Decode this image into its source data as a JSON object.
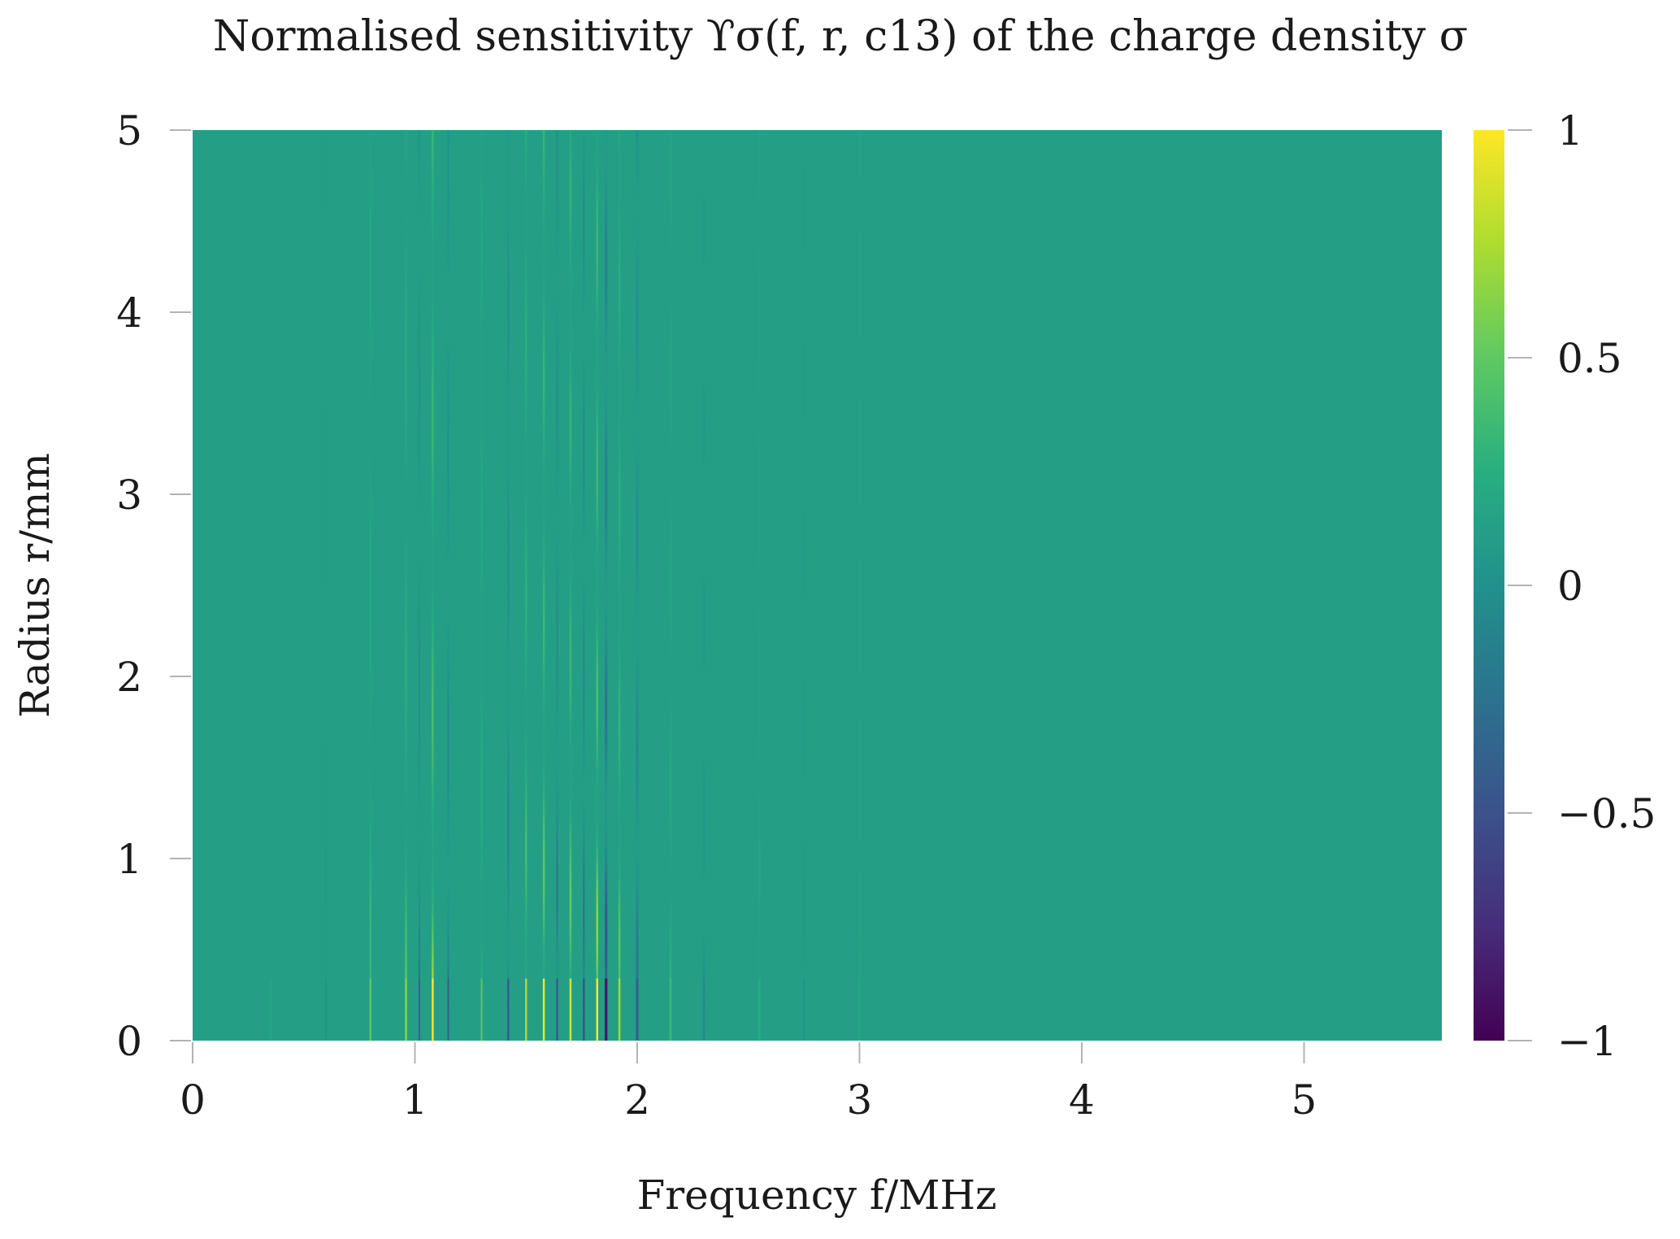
{
  "chart_data": {
    "type": "heatmap",
    "title": "Normalised sensitivity ϒσ(f, r, c13) of the charge density σ",
    "xlabel": "Frequency f/MHz",
    "ylabel": "Radius r/mm",
    "xlim": [
      0,
      5.62
    ],
    "ylim": [
      0,
      5
    ],
    "x_ticks": [
      {
        "value": 0,
        "label": "0"
      },
      {
        "value": 1,
        "label": "1"
      },
      {
        "value": 2,
        "label": "2"
      },
      {
        "value": 3,
        "label": "3"
      },
      {
        "value": 4,
        "label": "4"
      },
      {
        "value": 5,
        "label": "5"
      }
    ],
    "y_ticks": [
      {
        "value": 0,
        "label": "0"
      },
      {
        "value": 1,
        "label": "1"
      },
      {
        "value": 2,
        "label": "2"
      },
      {
        "value": 3,
        "label": "3"
      },
      {
        "value": 4,
        "label": "4"
      },
      {
        "value": 5,
        "label": "5"
      }
    ],
    "colorbar": {
      "colormap": "viridis",
      "range": [
        -1,
        1
      ],
      "ticks": [
        {
          "value": 1,
          "label": "1"
        },
        {
          "value": 0.5,
          "label": "0.5"
        },
        {
          "value": 0,
          "label": "0"
        },
        {
          "value": -0.5,
          "label": "−0.5"
        },
        {
          "value": -1,
          "label": "−1"
        }
      ]
    },
    "grid": false,
    "background_value": 0.12,
    "resonance_lines": [
      {
        "f": 0.35,
        "amp": 0.05,
        "sign": 1,
        "width": 0.006
      },
      {
        "f": 0.6,
        "amp": -0.08,
        "sign": -1,
        "width": 0.007
      },
      {
        "f": 0.8,
        "amp": 0.35,
        "sign": 1,
        "width": 0.008
      },
      {
        "f": 0.96,
        "amp": 0.45,
        "sign": 1,
        "width": 0.009
      },
      {
        "f": 1.02,
        "amp": -0.4,
        "sign": -1,
        "width": 0.008
      },
      {
        "f": 1.08,
        "amp": 0.8,
        "sign": 1,
        "width": 0.009
      },
      {
        "f": 1.15,
        "amp": -0.45,
        "sign": -1,
        "width": 0.008
      },
      {
        "f": 1.3,
        "amp": 0.3,
        "sign": 1,
        "width": 0.008
      },
      {
        "f": 1.42,
        "amp": -0.5,
        "sign": -1,
        "width": 0.009
      },
      {
        "f": 1.5,
        "amp": 0.55,
        "sign": 1,
        "width": 0.009
      },
      {
        "f": 1.58,
        "amp": 0.75,
        "sign": 1,
        "width": 0.009
      },
      {
        "f": 1.64,
        "amp": -0.55,
        "sign": -1,
        "width": 0.008
      },
      {
        "f": 1.7,
        "amp": 0.7,
        "sign": 1,
        "width": 0.009
      },
      {
        "f": 1.76,
        "amp": -0.6,
        "sign": -1,
        "width": 0.008
      },
      {
        "f": 1.82,
        "amp": 0.9,
        "sign": 1,
        "width": 0.009
      },
      {
        "f": 1.86,
        "amp": -0.9,
        "sign": -1,
        "width": 0.012
      },
      {
        "f": 1.92,
        "amp": 0.55,
        "sign": 1,
        "width": 0.009
      },
      {
        "f": 2.0,
        "amp": -0.45,
        "sign": -1,
        "width": 0.012
      },
      {
        "f": 2.15,
        "amp": 0.2,
        "sign": 1,
        "width": 0.01
      },
      {
        "f": 2.3,
        "amp": -0.15,
        "sign": -1,
        "width": 0.01
      },
      {
        "f": 2.55,
        "amp": 0.1,
        "sign": 1,
        "width": 0.01
      },
      {
        "f": 2.75,
        "amp": -0.08,
        "sign": -1,
        "width": 0.01
      },
      {
        "f": 3.0,
        "amp": 0.06,
        "sign": 1,
        "width": 0.01
      }
    ]
  }
}
